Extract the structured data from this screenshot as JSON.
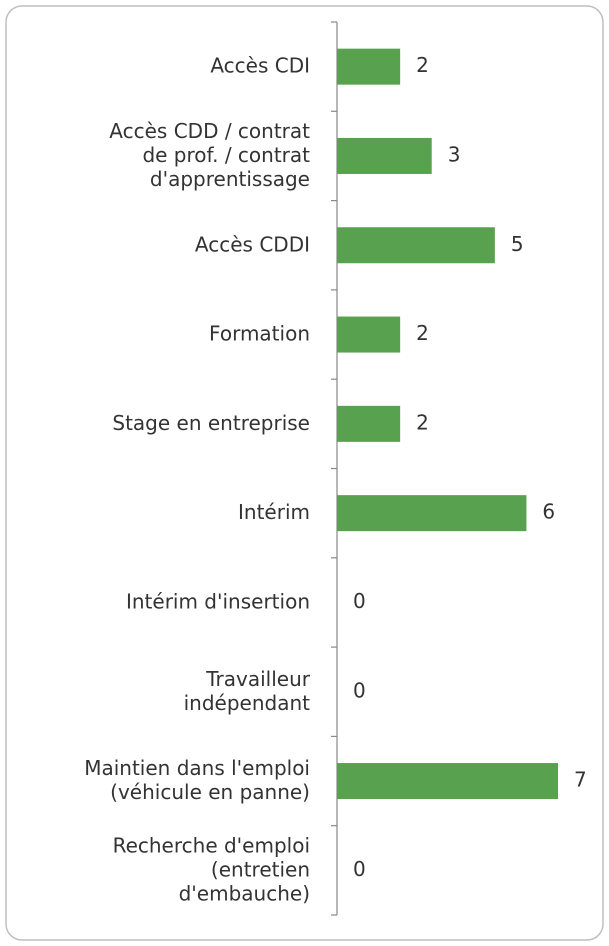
{
  "chart_data": {
    "type": "bar",
    "orientation": "horizontal",
    "categories": [
      "Accès CDI",
      "Accès CDD / contrat\nde prof. / contrat\nd'apprentissage",
      "Accès CDDI",
      "Formation",
      "Stage en entreprise",
      "Intérim",
      "Intérim d'insertion",
      "Travailleur\nindépendant",
      "Maintien dans l'emploi\n(véhicule en panne)",
      "Recherche d'emploi\n(entretien\nd'embauche)"
    ],
    "values": [
      2,
      3,
      5,
      2,
      2,
      6,
      0,
      0,
      7,
      0
    ],
    "color": "#58a14f"
  }
}
